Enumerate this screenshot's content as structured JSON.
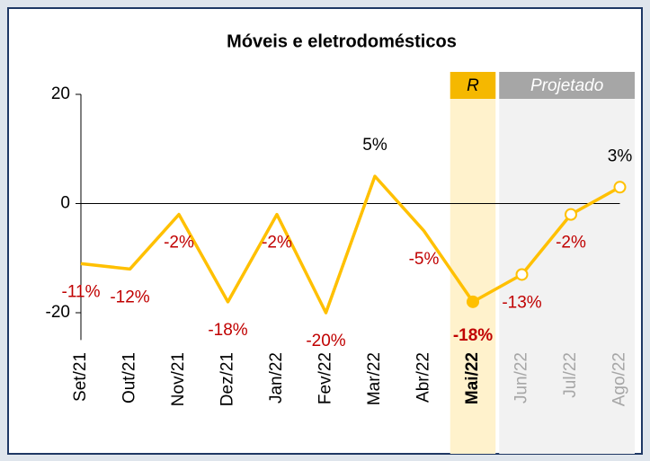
{
  "chart_data": {
    "type": "line",
    "title": "Móveis e eletrodomésticos",
    "categories": [
      "Set/21",
      "Out/21",
      "Nov/21",
      "Dez/21",
      "Jan/22",
      "Fev/22",
      "Mar/22",
      "Abr/22",
      "Mai/22",
      "Jun/22",
      "Jul/22",
      "Ago/22"
    ],
    "series": [
      {
        "name": "Móveis e eletrodomésticos",
        "color": "#ffc000",
        "values": [
          -11,
          -12,
          -2,
          -18,
          -2,
          -20,
          5,
          -5,
          -18,
          -13,
          -2,
          3
        ],
        "value_labels": [
          "-11%",
          "-12%",
          "-2%",
          "-18%",
          "-2%",
          "-20%",
          "5%",
          "-5%",
          "-18%",
          "-13%",
          "-2%",
          "3%"
        ]
      }
    ],
    "ylim": [
      -25,
      20
    ],
    "yticks": [
      -20,
      0,
      20
    ],
    "bands": [
      {
        "label": "R",
        "start": 8,
        "end": 8,
        "color": "#f5b800",
        "fill": "#fff2cc"
      },
      {
        "label": "Projetado",
        "start": 9,
        "end": 11,
        "color": "#a6a6a6",
        "fill": "#f2f2f2"
      }
    ]
  }
}
